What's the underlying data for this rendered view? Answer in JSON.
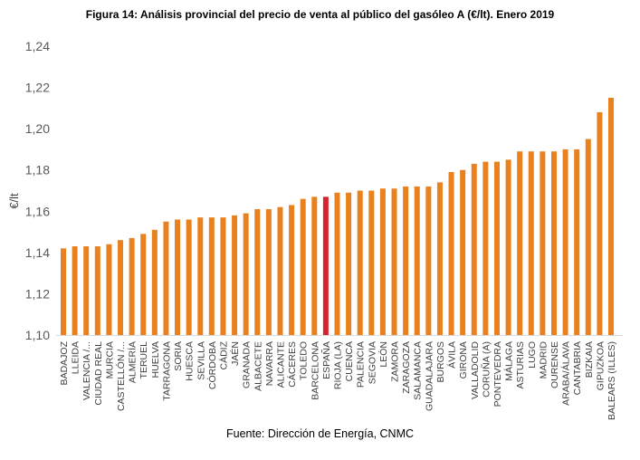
{
  "chart_data": {
    "type": "bar",
    "title": "Figura 14: Análisis provincial del precio de venta al público del gasóleo A (€/lt). Enero 2019",
    "xlabel": "",
    "ylabel": "€/lt",
    "ylim": [
      1.1,
      1.24
    ],
    "yticks": [
      "1,10",
      "1,12",
      "1,14",
      "1,16",
      "1,18",
      "1,20",
      "1,22",
      "1,24"
    ],
    "grid": false,
    "bar_color": "#E8811E",
    "highlight_color": "#D7232F",
    "highlight_category": "ESPAÑA",
    "categories": [
      "BADAJOZ",
      "LLEIDA",
      "VALENCIA /...",
      "CIUDAD REAL",
      "MURCIA",
      "CASTELLÓN /...",
      "ALMERÍA",
      "TERUEL",
      "HUELVA",
      "TARRAGONA",
      "SORIA",
      "HUESCA",
      "SEVILLA",
      "CÓRDOBA",
      "CÁDIZ",
      "JAÉN",
      "GRANADA",
      "ALBACETE",
      "NAVARRA",
      "ALICANTE",
      "CÁCERES",
      "TOLEDO",
      "BARCELONA",
      "ESPAÑA",
      "RIOJA (LA)",
      "CUENCA",
      "PALENCIA",
      "SEGOVIA",
      "LEÓN",
      "ZAMORA",
      "ZARAGOZA",
      "SALAMANCA",
      "GUADALAJARA",
      "BURGOS",
      "ÁVILA",
      "GIRONA",
      "VALLADOLID",
      "CORUÑA (A)",
      "PONTEVEDRA",
      "MÁLAGA",
      "ASTURIAS",
      "LUGO",
      "MADRID",
      "OURENSE",
      "ARABA/ÁLAVA",
      "CANTABRIA",
      "BIZKAIA",
      "GIPUZKOA",
      "BALEARS (ILLES)"
    ],
    "values": [
      1.142,
      1.143,
      1.143,
      1.143,
      1.144,
      1.146,
      1.147,
      1.149,
      1.151,
      1.155,
      1.156,
      1.156,
      1.157,
      1.157,
      1.157,
      1.158,
      1.159,
      1.161,
      1.161,
      1.162,
      1.163,
      1.166,
      1.167,
      1.167,
      1.169,
      1.169,
      1.17,
      1.17,
      1.171,
      1.171,
      1.172,
      1.172,
      1.172,
      1.174,
      1.179,
      1.18,
      1.183,
      1.184,
      1.184,
      1.185,
      1.189,
      1.189,
      1.189,
      1.189,
      1.19,
      1.19,
      1.195,
      1.208,
      1.215
    ]
  },
  "source": "Fuente: Dirección de Energía, CNMC"
}
